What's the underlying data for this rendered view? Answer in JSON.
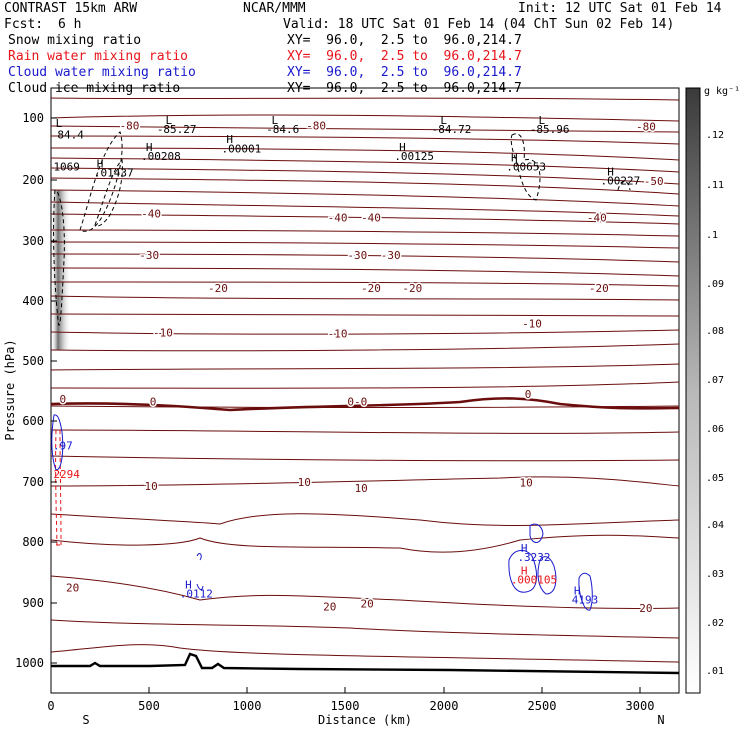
{
  "header": {
    "model": "CONTRAST 15km ARW",
    "org": "NCAR/MMM",
    "init": "Init: 12 UTC Sat 01 Feb 14",
    "fcst_label": "Fcst:",
    "fcst_value": "6 h",
    "valid": "Valid: 18 UTC Sat 01 Feb 14 (04 ChT Sun 02 Feb 14)"
  },
  "legend": [
    {
      "field": "Snow mixing ratio",
      "xy": "XY=  96.0,  2.5 to  96.0,214.7",
      "color": "#000000"
    },
    {
      "field": "Rain water mixing ratio",
      "xy": "XY=  96.0,  2.5 to  96.0,214.7",
      "color": "#e8151b"
    },
    {
      "field": "Cloud water mixing ratio",
      "xy": "XY=  96.0,  2.5 to  96.0,214.7",
      "color": "#1a1acc"
    },
    {
      "field": "Cloud ice mixing ratio",
      "xy": "XY=  96.0,  2.5 to  96.0,214.7",
      "color": "#000000"
    }
  ],
  "chart_data": {
    "type": "cross-section",
    "xlabel": "Distance (km)",
    "ylabel": "Pressure (hPa)",
    "xlim": [
      0,
      3200
    ],
    "ylim": [
      1000,
      100
    ],
    "x_ticks": [
      "0",
      "500",
      "1000",
      "1500",
      "2000",
      "2500",
      "3000"
    ],
    "y_ticks": [
      "100",
      "200",
      "300",
      "400",
      "500",
      "600",
      "700",
      "800",
      "900",
      "1000"
    ],
    "end_labels": {
      "left": "S",
      "right": "N"
    },
    "colorbar": {
      "unit": "g kg⁻¹",
      "ticks": [
        ".12",
        ".11",
        ".1",
        ".09",
        ".08",
        ".07",
        ".06",
        ".05",
        ".04",
        ".03",
        ".02",
        ".01"
      ]
    },
    "isotherm_labels": [
      {
        "text": "-80",
        "x": 400,
        "p": 112,
        "color": "#6b0d0d"
      },
      {
        "text": "-80",
        "x": 1350,
        "p": 112,
        "color": "#6b0d0d"
      },
      {
        "text": "-80",
        "x": 3030,
        "p": 114,
        "color": "#6b0d0d"
      },
      {
        "text": "-50",
        "x": 3070,
        "p": 204,
        "color": "#6b0d0d"
      },
      {
        "text": "-40",
        "x": 510,
        "p": 258,
        "color": "#6b0d0d"
      },
      {
        "text": "-40",
        "x": 1460,
        "p": 264,
        "color": "#6b0d0d"
      },
      {
        "text": "-40",
        "x": 1630,
        "p": 264,
        "color": "#6b0d0d"
      },
      {
        "text": "-40",
        "x": 2780,
        "p": 264,
        "color": "#6b0d0d"
      },
      {
        "text": "-30",
        "x": 500,
        "p": 326,
        "color": "#6b0d0d"
      },
      {
        "text": "-30",
        "x": 1560,
        "p": 326,
        "color": "#6b0d0d"
      },
      {
        "text": "-30",
        "x": 1730,
        "p": 326,
        "color": "#6b0d0d"
      },
      {
        "text": "-20",
        "x": 850,
        "p": 381,
        "color": "#6b0d0d"
      },
      {
        "text": "-20",
        "x": 1630,
        "p": 381,
        "color": "#6b0d0d"
      },
      {
        "text": "-20",
        "x": 1840,
        "p": 381,
        "color": "#6b0d0d"
      },
      {
        "text": "-20",
        "x": 2790,
        "p": 381,
        "color": "#6b0d0d"
      },
      {
        "text": "-10",
        "x": 570,
        "p": 454,
        "color": "#6b0d0d"
      },
      {
        "text": "-10",
        "x": 1460,
        "p": 456,
        "color": "#6b0d0d"
      },
      {
        "text": "-10",
        "x": 2450,
        "p": 439,
        "color": "#6b0d0d"
      },
      {
        "text": "0",
        "x": 60,
        "p": 564,
        "color": "#6b0d0d"
      },
      {
        "text": "0",
        "x": 520,
        "p": 568,
        "color": "#6b0d0d"
      },
      {
        "text": "0-0",
        "x": 1560,
        "p": 568,
        "color": "#6b0d0d"
      },
      {
        "text": "0",
        "x": 2430,
        "p": 556,
        "color": "#6b0d0d"
      },
      {
        "text": "10",
        "x": 510,
        "p": 708,
        "color": "#6b0d0d"
      },
      {
        "text": "10",
        "x": 1290,
        "p": 701,
        "color": "#6b0d0d"
      },
      {
        "text": "10",
        "x": 1580,
        "p": 711,
        "color": "#6b0d0d"
      },
      {
        "text": "10",
        "x": 2420,
        "p": 702,
        "color": "#6b0d0d"
      },
      {
        "text": "20",
        "x": 110,
        "p": 875,
        "color": "#6b0d0d"
      },
      {
        "text": "20",
        "x": 1420,
        "p": 907,
        "color": "#6b0d0d"
      },
      {
        "text": "20",
        "x": 1610,
        "p": 902,
        "color": "#6b0d0d"
      },
      {
        "text": "20",
        "x": 3030,
        "p": 909,
        "color": "#6b0d0d"
      }
    ],
    "extrema_labels": [
      {
        "text": "L",
        "x": 40,
        "p": 108,
        "color": "#000000"
      },
      {
        "text": "84.4",
        "x": 100,
        "p": 127,
        "color": "#000000"
      },
      {
        "text": "L",
        "x": 600,
        "p": 103,
        "color": "#000000"
      },
      {
        "text": "-85.27",
        "x": 640,
        "p": 118,
        "color": "#000000"
      },
      {
        "text": "L",
        "x": 1140,
        "p": 103,
        "color": "#000000"
      },
      {
        "text": "-84.6",
        "x": 1180,
        "p": 118,
        "color": "#000000"
      },
      {
        "text": "L",
        "x": 2000,
        "p": 103,
        "color": "#000000"
      },
      {
        "text": "-84.72",
        "x": 2040,
        "p": 118,
        "color": "#000000"
      },
      {
        "text": "L",
        "x": 2500,
        "p": 103,
        "color": "#000000"
      },
      {
        "text": "-85.96",
        "x": 2540,
        "p": 118,
        "color": "#000000"
      },
      {
        "text": "1069",
        "x": 80,
        "p": 180,
        "color": "#000000"
      },
      {
        "text": "H",
        "x": 250,
        "p": 175,
        "color": "#000000"
      },
      {
        "text": ".01437",
        "x": 320,
        "p": 190,
        "color": "#000000"
      },
      {
        "text": "H",
        "x": 500,
        "p": 148,
        "color": "#000000"
      },
      {
        "text": ".00208",
        "x": 560,
        "p": 163,
        "color": "#000000"
      },
      {
        "text": "H",
        "x": 910,
        "p": 135,
        "color": "#000000"
      },
      {
        "text": ".00001",
        "x": 970,
        "p": 150,
        "color": "#000000"
      },
      {
        "text": "H",
        "x": 1790,
        "p": 148,
        "color": "#000000"
      },
      {
        "text": ".00125",
        "x": 1850,
        "p": 163,
        "color": "#000000"
      },
      {
        "text": "H",
        "x": 2360,
        "p": 165,
        "color": "#000000"
      },
      {
        "text": ".00653",
        "x": 2420,
        "p": 180,
        "color": "#000000"
      },
      {
        "text": "H",
        "x": 2850,
        "p": 188,
        "color": "#000000"
      },
      {
        "text": ".00227",
        "x": 2900,
        "p": 203,
        "color": "#000000"
      },
      {
        "text": ".97",
        "x": 60,
        "p": 641,
        "color": "#1a1acc"
      },
      {
        "text": "2294",
        "x": 80,
        "p": 688,
        "color": "#e8151b"
      },
      {
        "text": "H",
        "x": 700,
        "p": 870,
        "color": "#1a1acc"
      },
      {
        "text": ".0112",
        "x": 740,
        "p": 885,
        "color": "#1a1acc"
      },
      {
        "text": "H",
        "x": 2410,
        "p": 810,
        "color": "#1a1acc"
      },
      {
        "text": ".3232",
        "x": 2460,
        "p": 825,
        "color": "#1a1acc"
      },
      {
        "text": "H",
        "x": 2410,
        "p": 847,
        "color": "#e8151b"
      },
      {
        "text": ".000105",
        "x": 2460,
        "p": 862,
        "color": "#e8151b"
      },
      {
        "text": "H",
        "x": 2680,
        "p": 880,
        "color": "#1a1acc"
      },
      {
        "text": "4193",
        "x": 2720,
        "p": 895,
        "color": "#1a1acc"
      }
    ]
  }
}
